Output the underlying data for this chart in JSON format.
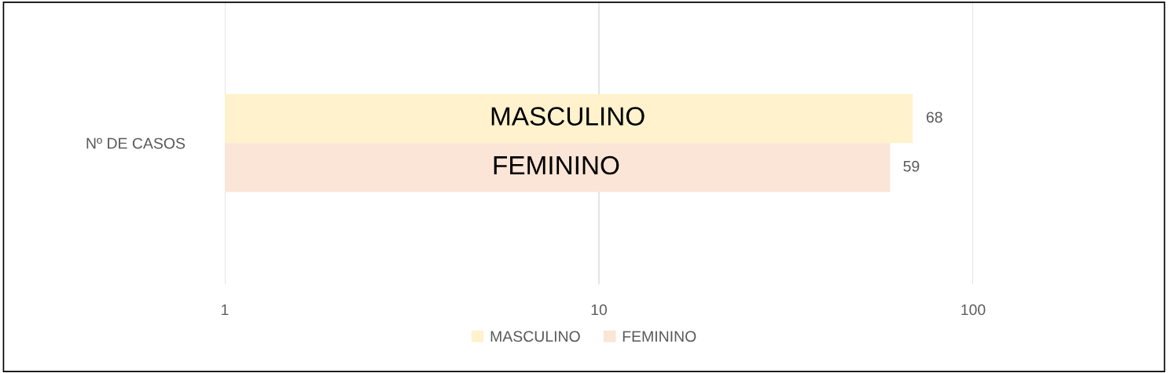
{
  "chart_data": {
    "type": "bar",
    "orientation": "horizontal",
    "categories": [
      "Nº DE CASOS"
    ],
    "series": [
      {
        "name": "MASCULINO",
        "color": "#fff2cc",
        "values": [
          68
        ]
      },
      {
        "name": "FEMININO",
        "color": "#fbe5d6",
        "values": [
          59
        ]
      }
    ],
    "log": "x",
    "xlim": [
      1,
      100
    ],
    "xticks": [
      1,
      10,
      100
    ],
    "grid": "x",
    "legend": "bottom",
    "data_labels": true
  }
}
